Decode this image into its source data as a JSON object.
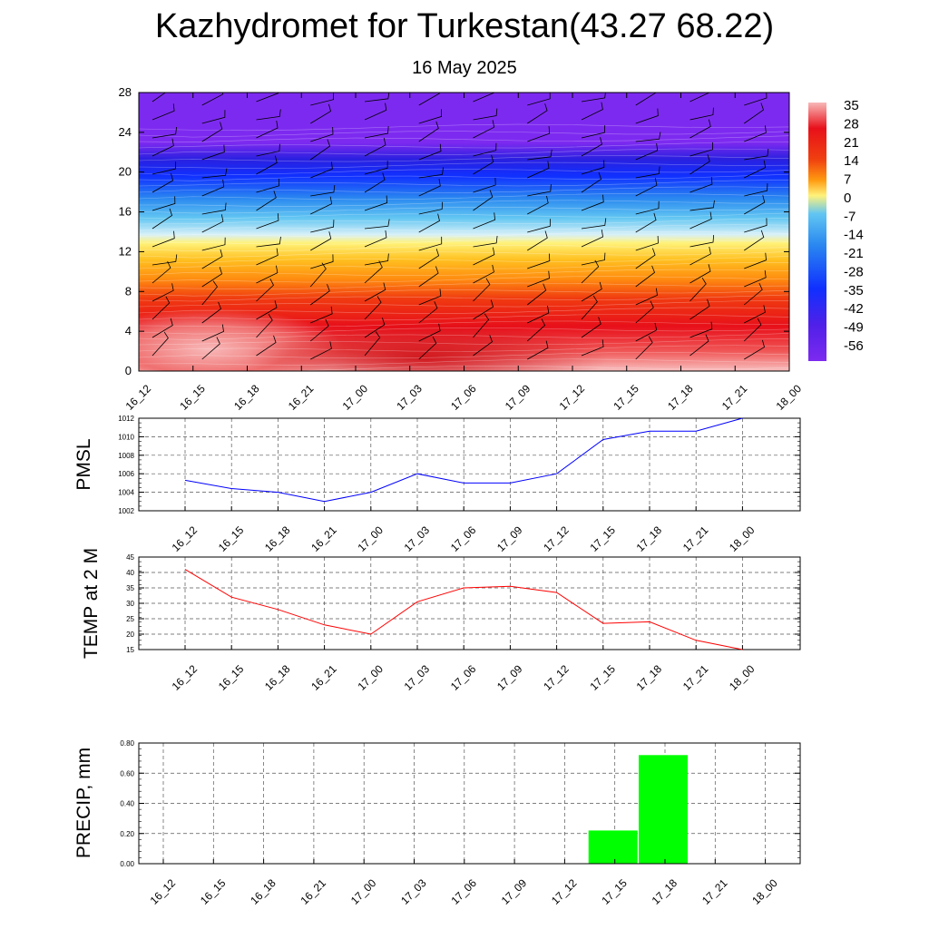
{
  "title": "Kazhydromet for Turkestan(43.27 68.22)",
  "subtitle": "16 May 2025",
  "time_labels": [
    "16_12",
    "16_15",
    "16_18",
    "16_21",
    "17_00",
    "17_03",
    "17_06",
    "17_09",
    "17_12",
    "17_15",
    "17_18",
    "17_21",
    "18_00"
  ],
  "chart_data": [
    {
      "type": "heatmap",
      "name": "cross-section",
      "ylim": [
        0,
        28
      ],
      "yticks": [
        "0",
        "4",
        "8",
        "12",
        "16",
        "20",
        "24",
        "28"
      ],
      "colorbar_labels": [
        "35",
        "28",
        "21",
        "14",
        "7",
        "0",
        "-7",
        "-14",
        "-21",
        "-28",
        "-35",
        "-42",
        "-49",
        "-56"
      ],
      "colors": {
        "hot": "#f8b4b4",
        "red": "#e8101a",
        "orange": "#ff9a10",
        "yellow": "#fff27a",
        "lightblue": "#62c6f2",
        "blue": "#1030ff",
        "purple": "#7d2af0"
      },
      "wind_barbs": true
    },
    {
      "type": "line",
      "ylabel": "PMSL",
      "ylim": [
        1002,
        1012
      ],
      "yticks": [
        "1002",
        "1004",
        "1006",
        "1008",
        "1010",
        "1012"
      ],
      "values": [
        1005.3,
        1004.4,
        1004.0,
        1003.0,
        1004.0,
        1006.0,
        1005.0,
        1005.0,
        1006.0,
        1009.7,
        1010.6,
        1010.6,
        1012.0
      ],
      "color": "#0000ff",
      "grid": true
    },
    {
      "type": "line",
      "ylabel": "TEMP at 2 M",
      "ylim": [
        15,
        45
      ],
      "yticks": [
        "15",
        "20",
        "25",
        "30",
        "35",
        "40",
        "45"
      ],
      "values": [
        41.0,
        32.0,
        28.0,
        23.0,
        20.0,
        30.5,
        35.0,
        35.5,
        33.5,
        23.5,
        24.0,
        18.0,
        15.0
      ],
      "color": "#ff0000",
      "grid": true
    },
    {
      "type": "bar",
      "ylabel": "PRECIP, mm",
      "ylim": [
        0,
        0.8
      ],
      "yticks": [
        "0.00",
        "0.20",
        "0.40",
        "0.60",
        "0.80"
      ],
      "values": [
        0,
        0,
        0,
        0,
        0,
        0,
        0,
        0,
        0,
        0.22,
        0.72,
        0,
        0
      ],
      "color": "#00ff00",
      "grid": true
    }
  ]
}
